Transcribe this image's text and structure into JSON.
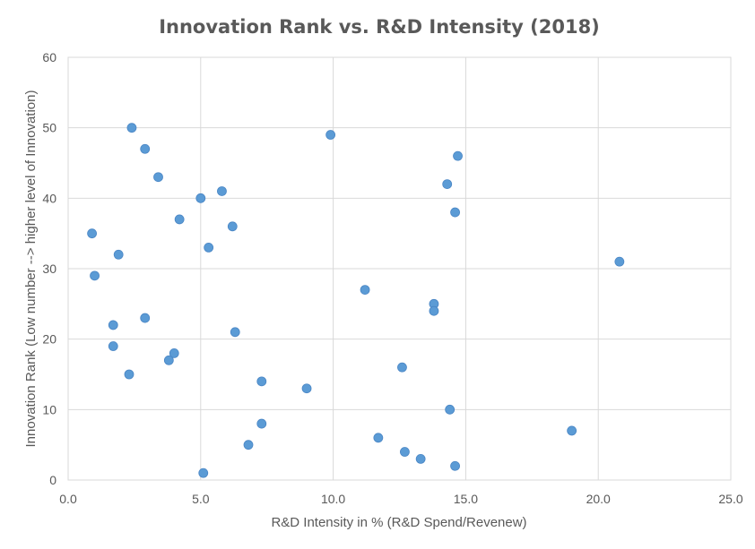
{
  "colors": {
    "marker": "#5B9BD5",
    "gridline": "#D9D9D9",
    "text": "#595959",
    "background": "#FFFFFF"
  },
  "chart_data": {
    "type": "scatter",
    "title": "Innovation Rank vs. R&D Intensity (2018)",
    "xlabel": "R&D Intensity in % (R&D Spend/Revenew)",
    "ylabel": "Innovation Rank (Low number --> higher level of Innovation)",
    "xlim": [
      0,
      25
    ],
    "ylim": [
      0,
      60
    ],
    "xticks": [
      0,
      5,
      10,
      15,
      20,
      25
    ],
    "xtick_labels": [
      "0.0",
      "5.0",
      "10.0",
      "15.0",
      "20.0",
      "25.0"
    ],
    "yticks": [
      0,
      10,
      20,
      30,
      40,
      50,
      60
    ],
    "ytick_labels": [
      "0",
      "10",
      "20",
      "30",
      "40",
      "50",
      "60"
    ],
    "grid": true,
    "legend": "none",
    "series": [
      {
        "points": [
          [
            2.4,
            50
          ],
          [
            2.9,
            47
          ],
          [
            3.4,
            43
          ],
          [
            5.0,
            40
          ],
          [
            5.8,
            41
          ],
          [
            4.2,
            37
          ],
          [
            6.2,
            36
          ],
          [
            5.3,
            33
          ],
          [
            0.9,
            35
          ],
          [
            1.9,
            32
          ],
          [
            1.0,
            29
          ],
          [
            2.9,
            23
          ],
          [
            1.7,
            22
          ],
          [
            6.3,
            21
          ],
          [
            1.7,
            19
          ],
          [
            4.0,
            18
          ],
          [
            3.8,
            17
          ],
          [
            2.3,
            15
          ],
          [
            7.3,
            14
          ],
          [
            9.0,
            13
          ],
          [
            7.3,
            8
          ],
          [
            6.8,
            5
          ],
          [
            5.1,
            1
          ],
          [
            9.9,
            49
          ],
          [
            11.2,
            27
          ],
          [
            12.6,
            16
          ],
          [
            11.7,
            6
          ],
          [
            12.7,
            4
          ],
          [
            13.3,
            3
          ],
          [
            13.8,
            25
          ],
          [
            13.8,
            24
          ],
          [
            14.3,
            42
          ],
          [
            14.6,
            38
          ],
          [
            14.7,
            46
          ],
          [
            14.4,
            10
          ],
          [
            14.6,
            2
          ],
          [
            19.0,
            7
          ],
          [
            20.8,
            31
          ]
        ]
      }
    ]
  }
}
